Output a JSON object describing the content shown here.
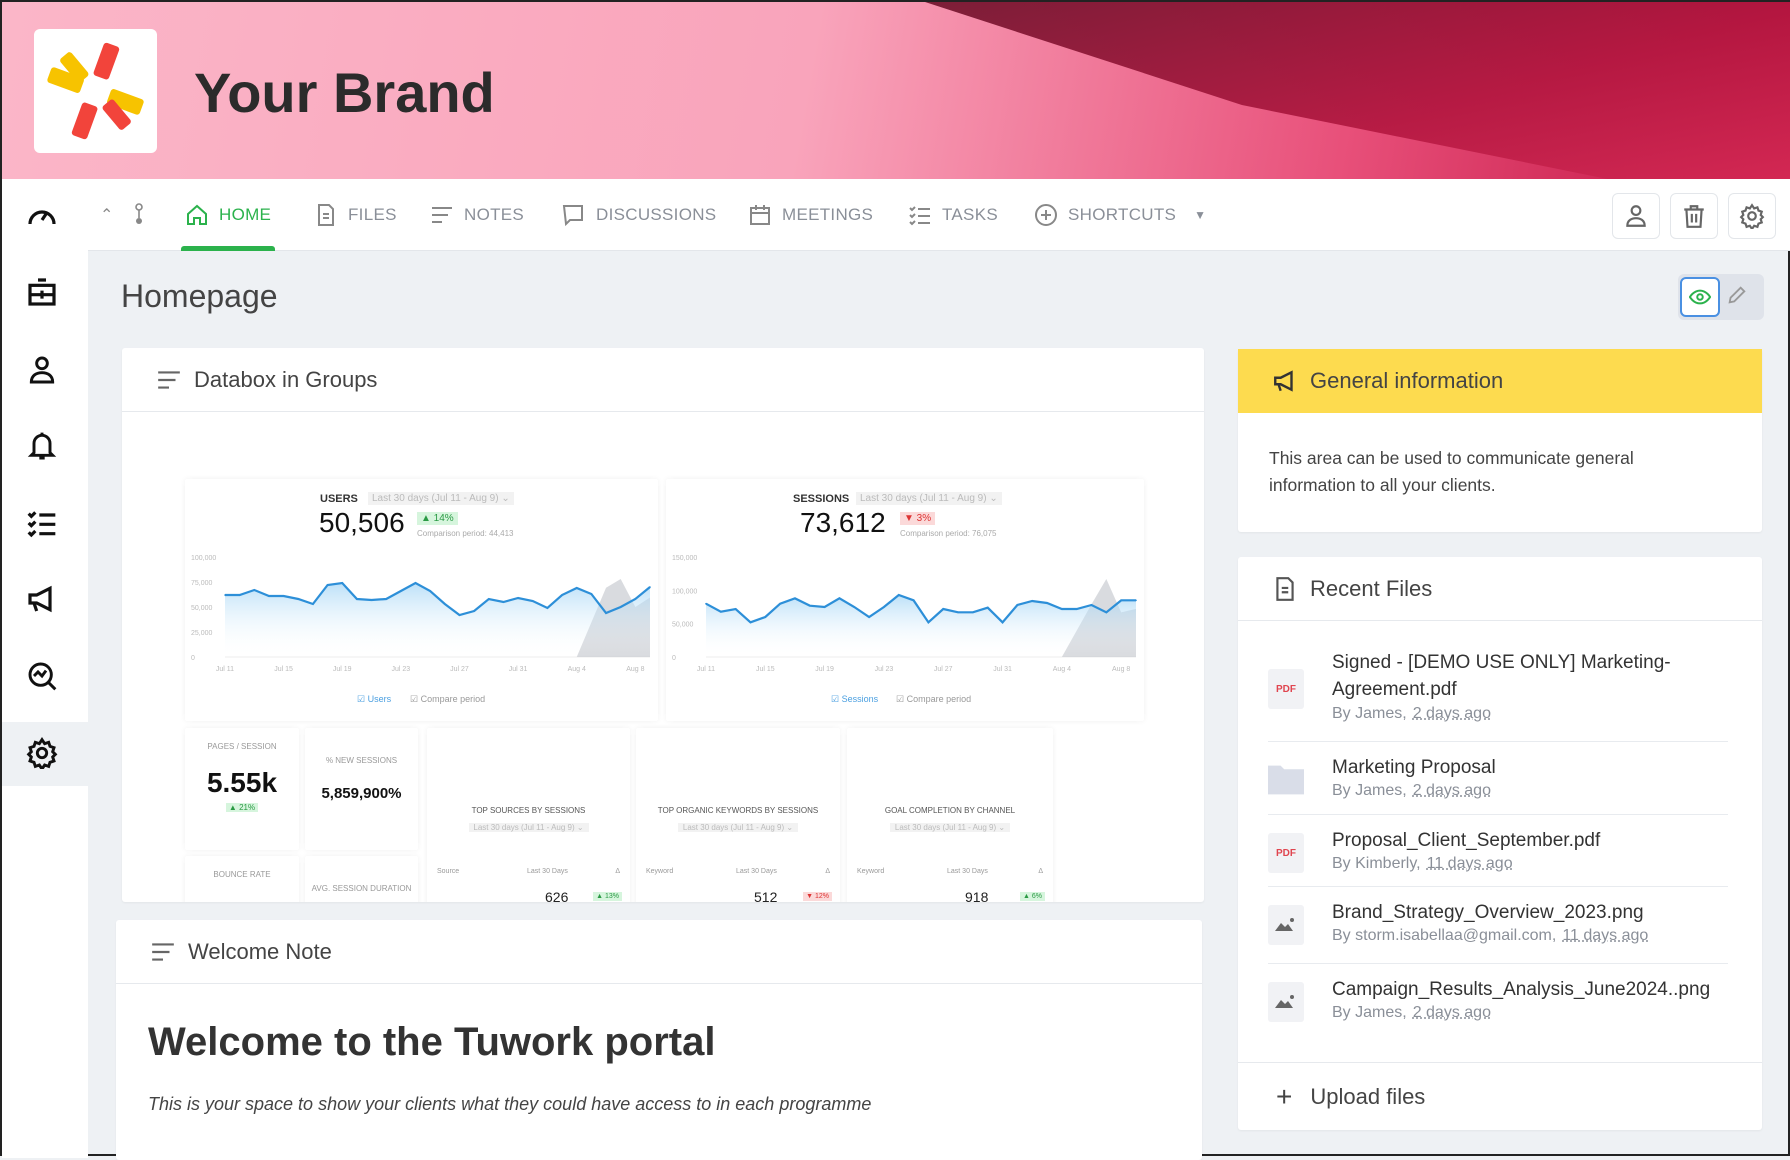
{
  "brand": {
    "name": "Your Brand"
  },
  "nav": {
    "tabs": [
      {
        "label": "HOME",
        "active": true
      },
      {
        "label": "FILES"
      },
      {
        "label": "NOTES"
      },
      {
        "label": "DISCUSSIONS"
      },
      {
        "label": "MEETINGS"
      },
      {
        "label": "TASKS"
      },
      {
        "label": "SHORTCUTS"
      }
    ]
  },
  "page": {
    "title": "Homepage"
  },
  "colors": {
    "accent": "#2bb24c",
    "info_header": "#fddb4f",
    "pdf": "#e0454f"
  },
  "databox": {
    "title": "Databox in Groups",
    "users": {
      "label": "USERS",
      "period": "Last 30 days (Jul 11 - Aug 9) ⌄",
      "value": "50,506",
      "change": "▲ 14%",
      "comparison": "Comparison period: 44,413",
      "legend": [
        "Users",
        "Compare period"
      ]
    },
    "sessions": {
      "label": "SESSIONS",
      "period": "Last 30 days (Jul 11 - Aug 9) ⌄",
      "value": "73,612",
      "change": "▼ 3%",
      "comparison": "Comparison period: 76,075",
      "legend": [
        "Sessions",
        "Compare period"
      ]
    },
    "widgets": [
      {
        "label": "PAGES / SESSION",
        "value": "5.55k",
        "change": "▲ 21%"
      },
      {
        "label": "% NEW SESSIONS",
        "value": "5,859,900%"
      },
      {
        "label": "TOP SOURCES BY SESSIONS",
        "period": "Last 30 days (Jul 11 - Aug 9) ⌄",
        "cols": [
          "Source",
          "Last 30 Days",
          "Δ"
        ],
        "value": "626",
        "change": "▲ 13%"
      },
      {
        "label": "TOP ORGANIC KEYWORDS BY SESSIONS",
        "period": "Last 30 days (Jul 11 - Aug 9) ⌄",
        "cols": [
          "Keyword",
          "Last 30 Days",
          "Δ"
        ],
        "value": "512",
        "change": "▼ 12%"
      },
      {
        "label": "GOAL COMPLETION BY CHANNEL",
        "period": "Last 30 days (Jul 11 - Aug 9) ⌄",
        "cols": [
          "Keyword",
          "Last 30 Days",
          "Δ"
        ],
        "value": "918",
        "change": "▲ 6%"
      },
      {
        "label": "BOUNCE RATE"
      },
      {
        "label": "AVG. SESSION DURATION"
      }
    ]
  },
  "chart_data": [
    {
      "type": "line",
      "title": "USERS",
      "x": [
        "Jul 11",
        "Jul 12",
        "Jul 13",
        "Jul 14",
        "Jul 15",
        "Jul 16",
        "Jul 17",
        "Jul 18",
        "Jul 19",
        "Jul 20",
        "Jul 21",
        "Jul 22",
        "Jul 23",
        "Jul 24",
        "Jul 25",
        "Jul 26",
        "Jul 27",
        "Jul 28",
        "Jul 29",
        "Jul 30",
        "Jul 31",
        "Aug 1",
        "Aug 2",
        "Aug 3",
        "Aug 4",
        "Aug 5",
        "Aug 6",
        "Aug 7",
        "Aug 8",
        "Aug 9"
      ],
      "xticks": [
        "Jul 11",
        "Jul 15",
        "Jul 19",
        "Jul 23",
        "Jul 27",
        "Jul 31",
        "Aug 4",
        "Aug 8"
      ],
      "yticks": [
        "0",
        "25,000",
        "50,000",
        "75,000",
        "100,000"
      ],
      "ylim": [
        0,
        100000
      ],
      "values": [
        62000,
        62000,
        67000,
        61000,
        61000,
        58000,
        53000,
        72000,
        74000,
        58000,
        57000,
        58000,
        66000,
        74000,
        66000,
        53000,
        42000,
        46000,
        58000,
        55000,
        59000,
        56000,
        49000,
        62000,
        69000,
        63000,
        44000,
        50000,
        58000,
        70000
      ]
    },
    {
      "type": "line",
      "title": "SESSIONS",
      "x": [
        "Jul 11",
        "Jul 12",
        "Jul 13",
        "Jul 14",
        "Jul 15",
        "Jul 16",
        "Jul 17",
        "Jul 18",
        "Jul 19",
        "Jul 20",
        "Jul 21",
        "Jul 22",
        "Jul 23",
        "Jul 24",
        "Jul 25",
        "Jul 26",
        "Jul 27",
        "Jul 28",
        "Jul 29",
        "Jul 30",
        "Jul 31",
        "Aug 1",
        "Aug 2",
        "Aug 3",
        "Aug 4",
        "Aug 5",
        "Aug 6",
        "Aug 7",
        "Aug 8",
        "Aug 9"
      ],
      "xticks": [
        "Jul 11",
        "Jul 15",
        "Jul 19",
        "Jul 23",
        "Jul 27",
        "Jul 31",
        "Aug 4",
        "Aug 8"
      ],
      "yticks": [
        "0",
        "50,000",
        "100,000",
        "150,000"
      ],
      "ylim": [
        0,
        150000
      ],
      "values": [
        80000,
        68000,
        72000,
        52000,
        60000,
        80000,
        88000,
        77000,
        75000,
        88000,
        75000,
        60000,
        75000,
        93000,
        85000,
        52000,
        72000,
        67000,
        67000,
        74000,
        52000,
        78000,
        84000,
        81000,
        72000,
        72000,
        78000,
        67000,
        85000,
        85000
      ]
    }
  ],
  "info": {
    "title": "General information",
    "text": "This area can be used to communicate general information to all your clients."
  },
  "files": {
    "title": "Recent Files",
    "items": [
      {
        "type": "PDF",
        "name": "Signed - [DEMO USE ONLY] Marketing-Agreement.pdf",
        "by": "By James,",
        "ago": "2 days ago"
      },
      {
        "type": "folder",
        "name": "Marketing Proposal",
        "by": "By James,",
        "ago": "2 days ago"
      },
      {
        "type": "PDF",
        "name": "Proposal_Client_September.pdf",
        "by": "By Kimberly,",
        "ago": "11 days ago"
      },
      {
        "type": "image",
        "name": "Brand_Strategy_Overview_2023.png",
        "by": "By storm.isabellaa@gmail.com,",
        "ago": "11 days ago"
      },
      {
        "type": "image",
        "name": "Campaign_Results_Analysis_June2024..png",
        "by": "By James,",
        "ago": "2 days ago"
      }
    ],
    "upload": "Upload files"
  },
  "welcome": {
    "title": "Welcome Note",
    "heading": "Welcome to the Tuwork portal",
    "text": "This is your space to show your clients what they could have access to in each programme"
  }
}
